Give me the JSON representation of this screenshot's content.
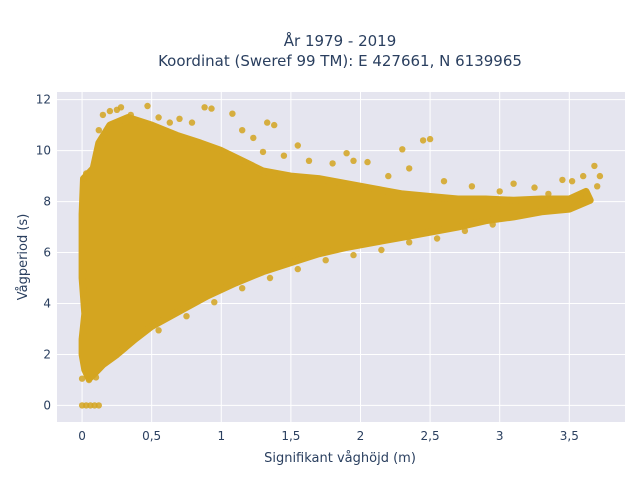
{
  "chart_data": {
    "type": "scatter",
    "title_line1": "År 1979 - 2019",
    "title_line2": "Koordinat (Sweref 99 TM): E 427661, N 6139965",
    "xlabel": "Signifikant våghöjd (m)",
    "ylabel": "Vågperiod (s)",
    "xlim": [
      -0.18,
      3.9
    ],
    "ylim": [
      -0.65,
      12.3
    ],
    "x_ticks": [
      {
        "value": 0,
        "label": "0"
      },
      {
        "value": 0.5,
        "label": "0,5"
      },
      {
        "value": 1,
        "label": "1"
      },
      {
        "value": 1.5,
        "label": "1,5"
      },
      {
        "value": 2,
        "label": "2"
      },
      {
        "value": 2.5,
        "label": "2,5"
      },
      {
        "value": 3,
        "label": "3"
      },
      {
        "value": 3.5,
        "label": "3,5"
      }
    ],
    "y_ticks": [
      {
        "value": 0,
        "label": "0"
      },
      {
        "value": 2,
        "label": "2"
      },
      {
        "value": 4,
        "label": "4"
      },
      {
        "value": 6,
        "label": "6"
      },
      {
        "value": 8,
        "label": "8"
      },
      {
        "value": 10,
        "label": "10"
      },
      {
        "value": 12,
        "label": "12"
      }
    ],
    "grid": true,
    "marker_color": "#d4a520",
    "background_color": "#e5e5ef",
    "dense_region_outline": [
      [
        0.0,
        2.6
      ],
      [
        0.02,
        3.6
      ],
      [
        0.0,
        5.0
      ],
      [
        0.0,
        7.5
      ],
      [
        0.01,
        8.9
      ],
      [
        0.08,
        9.3
      ],
      [
        0.12,
        10.3
      ],
      [
        0.2,
        11.0
      ],
      [
        0.33,
        11.3
      ],
      [
        0.5,
        11.0
      ],
      [
        0.68,
        10.6
      ],
      [
        0.85,
        10.3
      ],
      [
        1.0,
        10.0
      ],
      [
        1.15,
        9.6
      ],
      [
        1.3,
        9.2
      ],
      [
        1.5,
        9.0
      ],
      [
        1.7,
        8.9
      ],
      [
        1.9,
        8.7
      ],
      [
        2.1,
        8.5
      ],
      [
        2.3,
        8.3
      ],
      [
        2.5,
        8.2
      ],
      [
        2.7,
        8.1
      ],
      [
        2.9,
        8.1
      ],
      [
        3.1,
        8.05
      ],
      [
        3.3,
        8.1
      ],
      [
        3.5,
        8.1
      ],
      [
        3.62,
        8.4
      ],
      [
        3.65,
        8.05
      ],
      [
        3.5,
        7.7
      ],
      [
        3.3,
        7.6
      ],
      [
        3.1,
        7.4
      ],
      [
        2.9,
        7.25
      ],
      [
        2.7,
        7.0
      ],
      [
        2.5,
        6.8
      ],
      [
        2.3,
        6.6
      ],
      [
        2.1,
        6.4
      ],
      [
        1.9,
        6.2
      ],
      [
        1.7,
        5.95
      ],
      [
        1.5,
        5.6
      ],
      [
        1.3,
        5.25
      ],
      [
        1.1,
        4.8
      ],
      [
        0.9,
        4.3
      ],
      [
        0.7,
        3.7
      ],
      [
        0.5,
        3.1
      ],
      [
        0.38,
        2.6
      ],
      [
        0.25,
        2.0
      ],
      [
        0.15,
        1.6
      ],
      [
        0.08,
        1.2
      ],
      [
        0.05,
        1.05
      ],
      [
        0.02,
        1.4
      ],
      [
        0.0,
        2.0
      ]
    ],
    "sample_points": [
      {
        "x": 0.0,
        "y": 0.0
      },
      {
        "x": 0.03,
        "y": 0.0
      },
      {
        "x": 0.06,
        "y": 0.0
      },
      {
        "x": 0.09,
        "y": 0.0
      },
      {
        "x": 0.12,
        "y": 0.0
      },
      {
        "x": 0.0,
        "y": 1.05
      },
      {
        "x": 0.05,
        "y": 1.0
      },
      {
        "x": 0.1,
        "y": 1.1
      },
      {
        "x": 0.01,
        "y": 8.9
      },
      {
        "x": 0.03,
        "y": 9.1
      },
      {
        "x": 0.12,
        "y": 10.8
      },
      {
        "x": 0.15,
        "y": 11.4
      },
      {
        "x": 0.2,
        "y": 11.55
      },
      {
        "x": 0.25,
        "y": 11.6
      },
      {
        "x": 0.28,
        "y": 11.7
      },
      {
        "x": 0.35,
        "y": 11.4
      },
      {
        "x": 0.47,
        "y": 11.75
      },
      {
        "x": 0.55,
        "y": 11.3
      },
      {
        "x": 0.63,
        "y": 11.1
      },
      {
        "x": 0.7,
        "y": 11.25
      },
      {
        "x": 0.79,
        "y": 11.1
      },
      {
        "x": 0.88,
        "y": 11.7
      },
      {
        "x": 0.93,
        "y": 11.65
      },
      {
        "x": 1.08,
        "y": 11.45
      },
      {
        "x": 1.15,
        "y": 10.8
      },
      {
        "x": 1.23,
        "y": 10.5
      },
      {
        "x": 1.33,
        "y": 11.1
      },
      {
        "x": 1.38,
        "y": 11.0
      },
      {
        "x": 1.3,
        "y": 9.95
      },
      {
        "x": 1.45,
        "y": 9.8
      },
      {
        "x": 1.55,
        "y": 10.2
      },
      {
        "x": 1.63,
        "y": 9.6
      },
      {
        "x": 1.8,
        "y": 9.5
      },
      {
        "x": 1.9,
        "y": 9.9
      },
      {
        "x": 1.95,
        "y": 9.6
      },
      {
        "x": 2.05,
        "y": 9.55
      },
      {
        "x": 2.2,
        "y": 9.0
      },
      {
        "x": 2.35,
        "y": 9.3
      },
      {
        "x": 2.45,
        "y": 10.4
      },
      {
        "x": 2.5,
        "y": 10.45
      },
      {
        "x": 2.3,
        "y": 10.05
      },
      {
        "x": 2.6,
        "y": 8.8
      },
      {
        "x": 2.8,
        "y": 8.6
      },
      {
        "x": 3.0,
        "y": 8.4
      },
      {
        "x": 3.1,
        "y": 8.7
      },
      {
        "x": 3.25,
        "y": 8.55
      },
      {
        "x": 3.35,
        "y": 8.3
      },
      {
        "x": 3.45,
        "y": 8.85
      },
      {
        "x": 3.52,
        "y": 8.8
      },
      {
        "x": 3.6,
        "y": 9.0
      },
      {
        "x": 3.68,
        "y": 9.4
      },
      {
        "x": 3.72,
        "y": 9.0
      },
      {
        "x": 3.7,
        "y": 8.6
      },
      {
        "x": 3.58,
        "y": 8.2
      },
      {
        "x": 2.95,
        "y": 7.1
      },
      {
        "x": 2.75,
        "y": 6.85
      },
      {
        "x": 2.55,
        "y": 6.55
      },
      {
        "x": 2.35,
        "y": 6.4
      },
      {
        "x": 2.15,
        "y": 6.1
      },
      {
        "x": 1.95,
        "y": 5.9
      },
      {
        "x": 1.75,
        "y": 5.7
      },
      {
        "x": 1.55,
        "y": 5.35
      },
      {
        "x": 1.35,
        "y": 5.0
      },
      {
        "x": 1.15,
        "y": 4.6
      },
      {
        "x": 0.95,
        "y": 4.05
      },
      {
        "x": 0.75,
        "y": 3.5
      },
      {
        "x": 0.55,
        "y": 2.95
      }
    ]
  }
}
